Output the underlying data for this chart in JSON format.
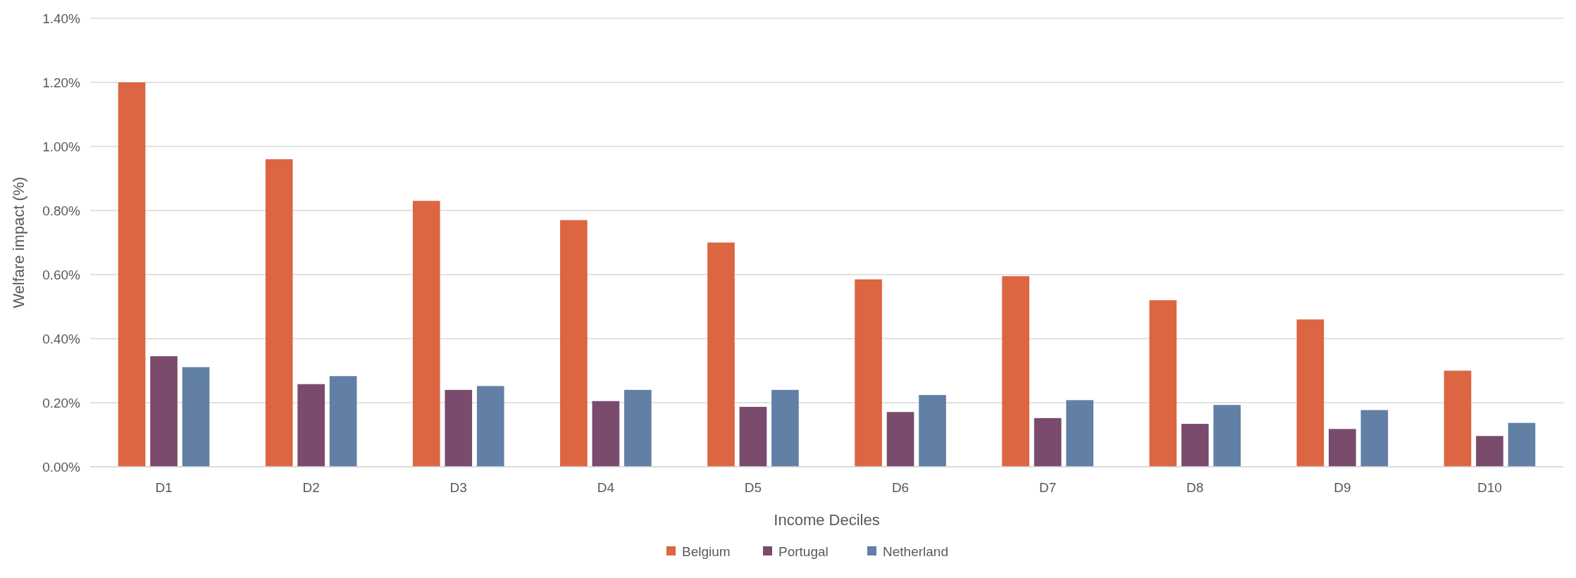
{
  "chart_data": {
    "type": "bar",
    "xlabel": "Income Deciles",
    "ylabel": "Welfare impact (%)",
    "categories": [
      "D1",
      "D2",
      "D3",
      "D4",
      "D5",
      "D6",
      "D7",
      "D8",
      "D9",
      "D10"
    ],
    "series": [
      {
        "name": "Belgium",
        "color": "#dc6542",
        "values": [
          1.2,
          0.96,
          0.83,
          0.77,
          0.7,
          0.585,
          0.595,
          0.52,
          0.46,
          0.3
        ]
      },
      {
        "name": "Portugal",
        "color": "#7a4b6c",
        "values": [
          0.345,
          0.258,
          0.24,
          0.205,
          0.187,
          0.171,
          0.152,
          0.134,
          0.118,
          0.096
        ]
      },
      {
        "name": "Netherland",
        "color": "#6280a6",
        "values": [
          0.311,
          0.283,
          0.252,
          0.24,
          0.24,
          0.224,
          0.208,
          0.193,
          0.177,
          0.137
        ]
      }
    ],
    "ylim": [
      0,
      1.4
    ],
    "yticks": [
      {
        "value": 0,
        "label": "0.00%"
      },
      {
        "value": 0.2,
        "label": "0.20%"
      },
      {
        "value": 0.4,
        "label": "0.40%"
      },
      {
        "value": 0.6,
        "label": "0.60%"
      },
      {
        "value": 0.8,
        "label": "0.80%"
      },
      {
        "value": 1.0,
        "label": "1.00%"
      },
      {
        "value": 1.2,
        "label": "1.20%"
      },
      {
        "value": 1.4,
        "label": "1.40%"
      }
    ],
    "grid": "y",
    "legend": "bottom"
  }
}
